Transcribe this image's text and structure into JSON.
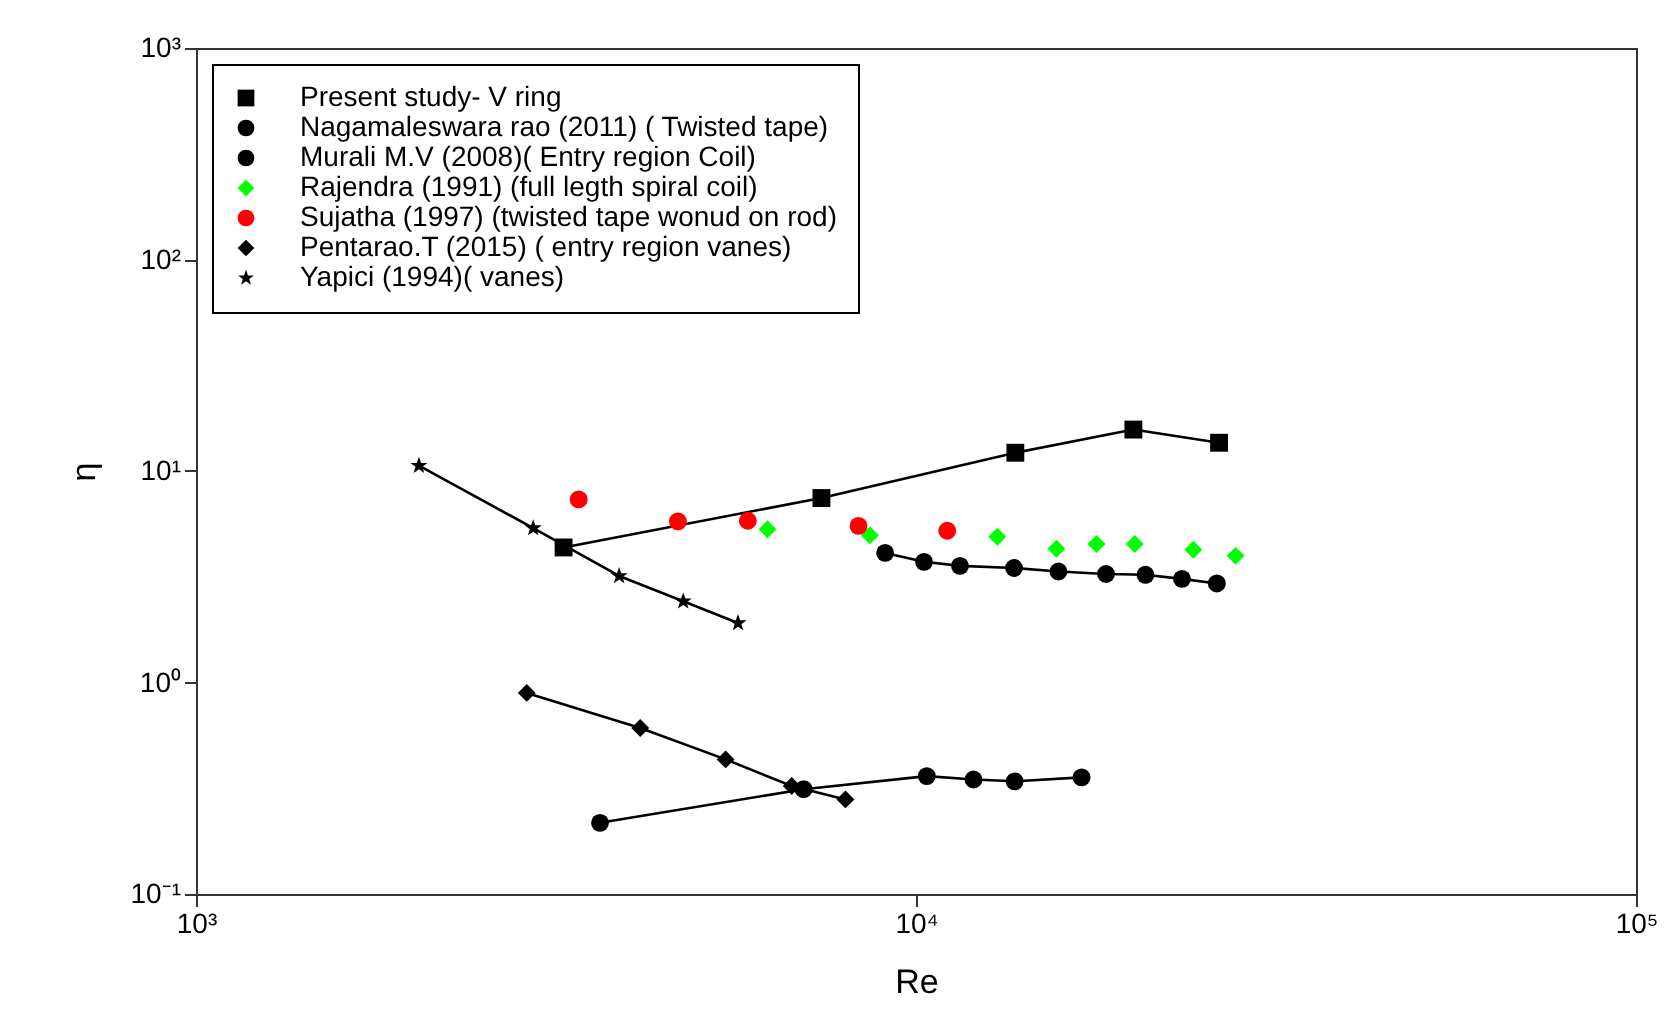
{
  "chart_data": {
    "type": "scatter",
    "xlabel": "Re",
    "ylabel": "η",
    "log": "xy",
    "grid": false,
    "legend": "top left",
    "xlim": [
      1000,
      100000
    ],
    "xticks": [
      {
        "value": 1000,
        "label": "10³"
      },
      {
        "value": 10000,
        "label": "10⁴"
      },
      {
        "value": 100000,
        "label": "10⁵"
      }
    ],
    "ylim": [
      0.1,
      1000
    ],
    "yticks": [
      {
        "value": 0.1,
        "label": "10⁻¹"
      },
      {
        "value": 1,
        "label": "10⁰"
      },
      {
        "value": 10,
        "label": "10¹"
      },
      {
        "value": 100,
        "label": "10²"
      },
      {
        "value": 1000,
        "label": "10³"
      }
    ],
    "series": [
      {
        "name": "Present study-  V ring",
        "type": "line",
        "marker": "square",
        "line_style": "solid",
        "color": "#000000",
        "x": [
          3240,
          7390,
          13740,
          20040,
          26360
        ],
        "values": [
          4.35,
          7.45,
          12.2,
          15.7,
          13.6
        ]
      },
      {
        "name": "Nagamaleswara rao (2011) ( Twisted tape)",
        "type": "line",
        "marker": "circle",
        "line_style": "solid",
        "color": "#000000",
        "x": [
          9060,
          10260,
          11510,
          13680,
          15770,
          18360,
          20830,
          23410,
          26170
        ],
        "values": [
          4.1,
          3.72,
          3.56,
          3.48,
          3.35,
          3.26,
          3.23,
          3.09,
          2.94
        ]
      },
      {
        "name": "Murali M.V (2008)( Entry region Coil)",
        "type": "line",
        "marker": "circle",
        "line_style": "solid",
        "color": "#000000",
        "x": [
          3640,
          6980,
          10350,
          12020,
          13710,
          16980
        ],
        "values": [
          0.217,
          0.313,
          0.361,
          0.348,
          0.341,
          0.356
        ]
      },
      {
        "name": "Rajendra (1991) (full legth spiral coil)",
        "type": "scatter",
        "marker": "diamond",
        "color": "#00ff00",
        "x": [
          6220,
          8630,
          12970,
          15670,
          17810,
          20130,
          24280,
          27790
        ],
        "values": [
          5.3,
          4.97,
          4.89,
          4.29,
          4.52,
          4.52,
          4.24,
          3.97
        ]
      },
      {
        "name": "Sujatha (1997) (twisted tape wonud on rod)",
        "type": "scatter",
        "marker": "circle",
        "color": "#ff0000",
        "x": [
          3400,
          4670,
          5840,
          8320,
          11050
        ],
        "values": [
          7.34,
          5.78,
          5.82,
          5.5,
          5.22
        ]
      },
      {
        "name": "Pentarao.T (2015) ( entry region vanes)",
        "type": "line",
        "marker": "diamond",
        "line_style": "solid",
        "color": "#000000",
        "x": [
          2880,
          4140,
          5440,
          6720,
          7980
        ],
        "values": [
          0.893,
          0.609,
          0.433,
          0.324,
          0.28
        ]
      },
      {
        "name": "Yapici (1994)( vanes)",
        "type": "line",
        "marker": "star",
        "line_style": "solid",
        "color": "#000000",
        "x": [
          2040,
          2940,
          3870,
          4750,
          5660
        ],
        "values": [
          10.6,
          5.37,
          3.19,
          2.42,
          1.91
        ]
      }
    ]
  }
}
